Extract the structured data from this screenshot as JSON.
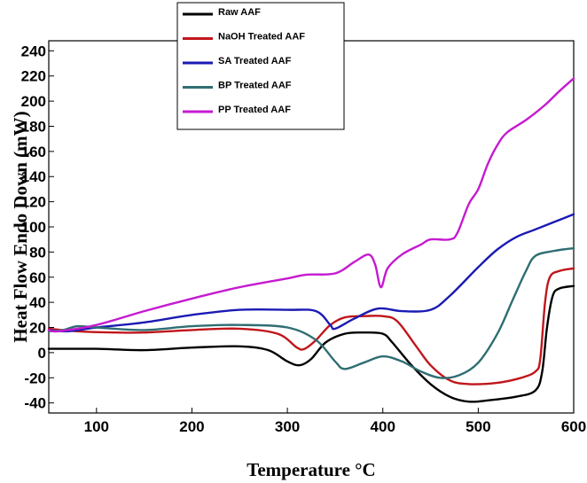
{
  "chart_data": {
    "type": "line",
    "title": "",
    "xlabel": "Temperature °C",
    "ylabel": "Heat Flow Endo Down (mW)",
    "xlim": [
      50,
      600
    ],
    "ylim": [
      -48,
      248
    ],
    "xticks": [
      100,
      200,
      300,
      400,
      500,
      600
    ],
    "yticks": [
      -40,
      -20,
      0,
      20,
      40,
      60,
      80,
      100,
      120,
      140,
      160,
      180,
      200,
      220,
      240
    ],
    "grid": false,
    "legend_position": "top-left",
    "series": [
      {
        "name": "Raw AAF",
        "color": "#000000",
        "points": [
          [
            50,
            3
          ],
          [
            100,
            3
          ],
          [
            150,
            2
          ],
          [
            200,
            4
          ],
          [
            250,
            5
          ],
          [
            280,
            2
          ],
          [
            300,
            -7
          ],
          [
            313,
            -10
          ],
          [
            325,
            -5
          ],
          [
            340,
            8
          ],
          [
            360,
            15
          ],
          [
            380,
            16
          ],
          [
            400,
            15
          ],
          [
            410,
            8
          ],
          [
            430,
            -10
          ],
          [
            450,
            -25
          ],
          [
            470,
            -35
          ],
          [
            490,
            -39
          ],
          [
            510,
            -38
          ],
          [
            540,
            -35
          ],
          [
            560,
            -30
          ],
          [
            567,
            -15
          ],
          [
            572,
            20
          ],
          [
            578,
            45
          ],
          [
            585,
            51
          ],
          [
            600,
            53
          ]
        ]
      },
      {
        "name": "NaOH Treated AAF",
        "color": "#c0161b",
        "points": [
          [
            50,
            19
          ],
          [
            80,
            17
          ],
          [
            120,
            16
          ],
          [
            150,
            16
          ],
          [
            200,
            18
          ],
          [
            250,
            19
          ],
          [
            290,
            15
          ],
          [
            310,
            4
          ],
          [
            318,
            3
          ],
          [
            330,
            10
          ],
          [
            345,
            22
          ],
          [
            360,
            28
          ],
          [
            380,
            29
          ],
          [
            400,
            29
          ],
          [
            415,
            25
          ],
          [
            435,
            5
          ],
          [
            450,
            -10
          ],
          [
            470,
            -22
          ],
          [
            490,
            -25
          ],
          [
            520,
            -24
          ],
          [
            545,
            -20
          ],
          [
            560,
            -15
          ],
          [
            565,
            -5
          ],
          [
            570,
            40
          ],
          [
            575,
            60
          ],
          [
            585,
            65
          ],
          [
            600,
            67
          ]
        ]
      },
      {
        "name": "SA Treated AAF",
        "color": "#1a1ab4",
        "points": [
          [
            50,
            18
          ],
          [
            70,
            17
          ],
          [
            100,
            20
          ],
          [
            150,
            24
          ],
          [
            200,
            30
          ],
          [
            250,
            34
          ],
          [
            300,
            34
          ],
          [
            330,
            33
          ],
          [
            345,
            22
          ],
          [
            350,
            19
          ],
          [
            370,
            27
          ],
          [
            395,
            35
          ],
          [
            420,
            33
          ],
          [
            450,
            34
          ],
          [
            470,
            45
          ],
          [
            500,
            68
          ],
          [
            520,
            82
          ],
          [
            540,
            92
          ],
          [
            560,
            98
          ],
          [
            580,
            104
          ],
          [
            600,
            110
          ]
        ]
      },
      {
        "name": "BP Treated AAF",
        "color": "#2f6e73",
        "points": [
          [
            50,
            17
          ],
          [
            65,
            18
          ],
          [
            80,
            21
          ],
          [
            100,
            20
          ],
          [
            150,
            18
          ],
          [
            200,
            21
          ],
          [
            250,
            22
          ],
          [
            300,
            20
          ],
          [
            330,
            10
          ],
          [
            350,
            -7
          ],
          [
            360,
            -13
          ],
          [
            380,
            -8
          ],
          [
            400,
            -3
          ],
          [
            420,
            -7
          ],
          [
            440,
            -15
          ],
          [
            460,
            -20
          ],
          [
            480,
            -18
          ],
          [
            500,
            -8
          ],
          [
            520,
            15
          ],
          [
            535,
            40
          ],
          [
            550,
            65
          ],
          [
            560,
            77
          ],
          [
            580,
            81
          ],
          [
            600,
            83
          ]
        ]
      },
      {
        "name": "PP Treated AAF",
        "color": "#c51ad0",
        "points": [
          [
            50,
            18
          ],
          [
            60,
            17
          ],
          [
            100,
            22
          ],
          [
            150,
            33
          ],
          [
            200,
            43
          ],
          [
            250,
            52
          ],
          [
            300,
            59
          ],
          [
            320,
            62
          ],
          [
            350,
            63
          ],
          [
            370,
            72
          ],
          [
            385,
            78
          ],
          [
            392,
            70
          ],
          [
            398,
            52
          ],
          [
            405,
            67
          ],
          [
            420,
            78
          ],
          [
            440,
            86
          ],
          [
            450,
            90
          ],
          [
            470,
            90
          ],
          [
            478,
            95
          ],
          [
            490,
            118
          ],
          [
            500,
            130
          ],
          [
            510,
            150
          ],
          [
            520,
            165
          ],
          [
            530,
            175
          ],
          [
            550,
            185
          ],
          [
            570,
            197
          ],
          [
            585,
            208
          ],
          [
            600,
            218
          ]
        ]
      }
    ]
  }
}
